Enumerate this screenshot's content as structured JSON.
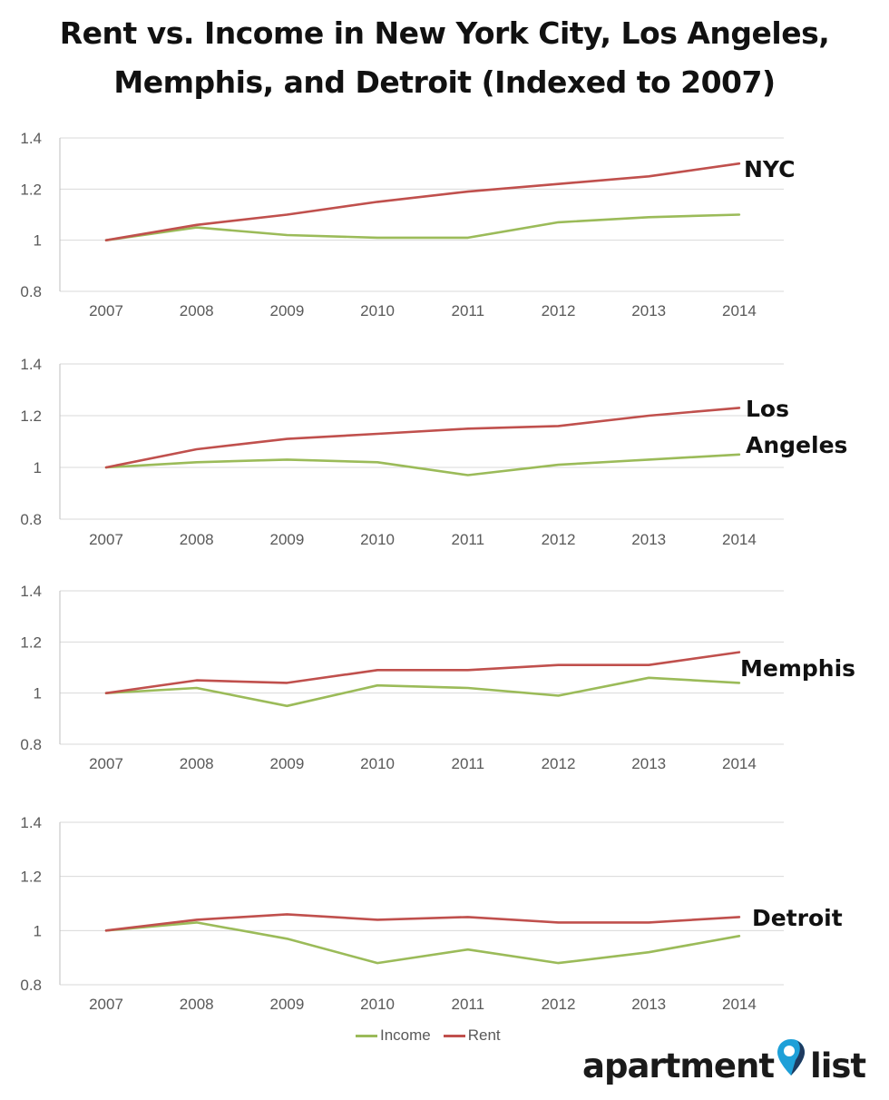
{
  "title": "Rent vs. Income in New York City, Los Angeles,\nMemphis, and Detroit (Indexed to 2007)",
  "colors": {
    "income": "#9bbb59",
    "rent": "#c0504d",
    "grid": "#d9d9d9",
    "axis": "#bfbfbf",
    "logo_pin": "#1ea0d8"
  },
  "chart_data": [
    {
      "type": "line",
      "title": "NYC",
      "categories": [
        "2007",
        "2008",
        "2009",
        "2010",
        "2011",
        "2012",
        "2013",
        "2014"
      ],
      "ylim": [
        0.8,
        1.4
      ],
      "yticks": [
        "0.8",
        "1",
        "1.2",
        "1.4"
      ],
      "grid": true,
      "series": [
        {
          "name": "Income",
          "values": [
            1.0,
            1.05,
            1.02,
            1.01,
            1.01,
            1.07,
            1.09,
            1.1
          ]
        },
        {
          "name": "Rent",
          "values": [
            1.0,
            1.06,
            1.1,
            1.15,
            1.19,
            1.22,
            1.25,
            1.3
          ]
        }
      ]
    },
    {
      "type": "line",
      "title": "Los Angeles",
      "categories": [
        "2007",
        "2008",
        "2009",
        "2010",
        "2011",
        "2012",
        "2013",
        "2014"
      ],
      "ylim": [
        0.8,
        1.4
      ],
      "yticks": [
        "0.8",
        "1",
        "1.2",
        "1.4"
      ],
      "grid": true,
      "series": [
        {
          "name": "Income",
          "values": [
            1.0,
            1.02,
            1.03,
            1.02,
            0.97,
            1.01,
            1.03,
            1.05
          ]
        },
        {
          "name": "Rent",
          "values": [
            1.0,
            1.07,
            1.11,
            1.13,
            1.15,
            1.16,
            1.2,
            1.23
          ]
        }
      ]
    },
    {
      "type": "line",
      "title": "Memphis",
      "categories": [
        "2007",
        "2008",
        "2009",
        "2010",
        "2011",
        "2012",
        "2013",
        "2014"
      ],
      "ylim": [
        0.8,
        1.4
      ],
      "yticks": [
        "0.8",
        "1",
        "1.2",
        "1.4"
      ],
      "grid": true,
      "series": [
        {
          "name": "Income",
          "values": [
            1.0,
            1.02,
            0.95,
            1.03,
            1.02,
            0.99,
            1.06,
            1.04
          ]
        },
        {
          "name": "Rent",
          "values": [
            1.0,
            1.05,
            1.04,
            1.09,
            1.09,
            1.11,
            1.11,
            1.16
          ]
        }
      ]
    },
    {
      "type": "line",
      "title": "Detroit",
      "categories": [
        "2007",
        "2008",
        "2009",
        "2010",
        "2011",
        "2012",
        "2013",
        "2014"
      ],
      "ylim": [
        0.8,
        1.4
      ],
      "yticks": [
        "0.8",
        "1",
        "1.2",
        "1.4"
      ],
      "grid": true,
      "series": [
        {
          "name": "Income",
          "values": [
            1.0,
            1.03,
            0.97,
            0.88,
            0.93,
            0.88,
            0.92,
            0.98
          ]
        },
        {
          "name": "Rent",
          "values": [
            1.0,
            1.04,
            1.06,
            1.04,
            1.05,
            1.03,
            1.03,
            1.05
          ]
        }
      ]
    }
  ],
  "legend": [
    {
      "label": "Income",
      "color": "#9bbb59"
    },
    {
      "label": "Rent",
      "color": "#c0504d"
    }
  ],
  "logo": {
    "left": "apartment",
    "right": "list",
    "icon": "location-pin-icon"
  }
}
